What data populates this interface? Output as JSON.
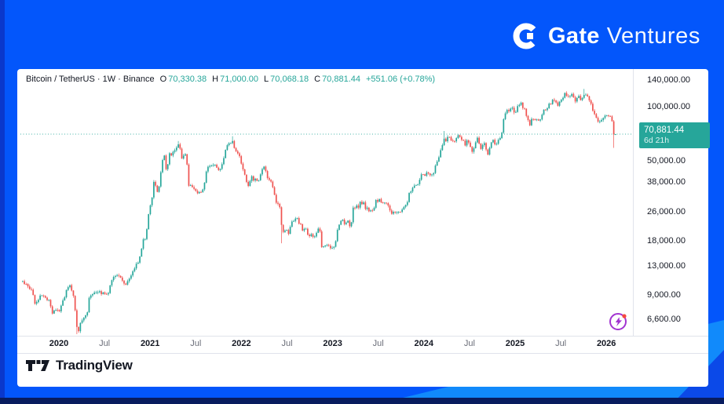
{
  "brand": {
    "gate": "Gate",
    "ventures": "Ventures"
  },
  "legend": {
    "title": "Bitcoin / TetherUS · 1W · Binance",
    "o_label": "O",
    "o": "70,330.38",
    "h_label": "H",
    "h": "71,000.00",
    "l_label": "L",
    "l": "70,068.18",
    "c_label": "C",
    "c": "70,881.44",
    "change": "+551.06 (+0.78%)"
  },
  "price_badge": {
    "price": "70,881.44",
    "countdown": "6d 21h"
  },
  "watermark": {
    "tradingview": "TradingView"
  },
  "chart_data": {
    "type": "candlestick",
    "title": "Bitcoin / TetherUS",
    "interval": "1W",
    "exchange": "Binance",
    "scale": "logarithmic",
    "legend_position": "top-left",
    "grid": false,
    "ylim": [
      5400,
      148000
    ],
    "xlim_years": [
      2019.6,
      2026.1
    ],
    "current": {
      "o": 70330.38,
      "h": 71000.0,
      "l": 70068.18,
      "c": 70881.44,
      "change": 551.06,
      "change_pct": 0.78
    },
    "colors": {
      "up": "#26a69a",
      "down": "#ef5350",
      "badge": "#26a69a",
      "text": "#131722",
      "muted": "#6a6d78"
    },
    "weeks": 340,
    "y_ticks": [
      {
        "label": "140,000.00",
        "value": 140000
      },
      {
        "label": "100,000.00",
        "value": 100000
      },
      {
        "label": "50,000.00",
        "value": 50000
      },
      {
        "label": "38,000.00",
        "value": 38000
      },
      {
        "label": "26,000.00",
        "value": 26000
      },
      {
        "label": "18,000.00",
        "value": 18000
      },
      {
        "label": "13,000.00",
        "value": 13000
      },
      {
        "label": "9,000.00",
        "value": 9000
      },
      {
        "label": "6,600.00",
        "value": 6600
      }
    ],
    "x_ticks": [
      {
        "label": "2020",
        "t": 2020,
        "major": true
      },
      {
        "label": "Jul",
        "t": 2020.5,
        "major": false
      },
      {
        "label": "2021",
        "t": 2021,
        "major": true
      },
      {
        "label": "Jul",
        "t": 2021.5,
        "major": false
      },
      {
        "label": "2022",
        "t": 2022,
        "major": true
      },
      {
        "label": "Jul",
        "t": 2022.5,
        "major": false
      },
      {
        "label": "2023",
        "t": 2023,
        "major": true
      },
      {
        "label": "Jul",
        "t": 2023.5,
        "major": false
      },
      {
        "label": "2024",
        "t": 2024,
        "major": true
      },
      {
        "label": "Jul",
        "t": 2024.5,
        "major": false
      },
      {
        "label": "2025",
        "t": 2025,
        "major": true
      },
      {
        "label": "Jul",
        "t": 2025.5,
        "major": false
      },
      {
        "label": "2026",
        "t": 2026,
        "major": true
      }
    ],
    "price_path": [
      [
        2019.6,
        10800
      ],
      [
        2019.65,
        10200
      ],
      [
        2019.7,
        9900
      ],
      [
        2019.73,
        8200
      ],
      [
        2019.77,
        8450
      ],
      [
        2019.8,
        9300
      ],
      [
        2019.84,
        8600
      ],
      [
        2019.88,
        8800
      ],
      [
        2019.92,
        7300
      ],
      [
        2019.96,
        7500
      ],
      [
        2020.0,
        7250
      ],
      [
        2020.04,
        8350
      ],
      [
        2020.08,
        9550
      ],
      [
        2020.12,
        10300
      ],
      [
        2020.16,
        8900
      ],
      [
        2020.2,
        5450
      ],
      [
        2020.23,
        6250
      ],
      [
        2020.27,
        6850
      ],
      [
        2020.31,
        7500
      ],
      [
        2020.33,
        8800
      ],
      [
        2020.37,
        9350
      ],
      [
        2020.42,
        9600
      ],
      [
        2020.46,
        9150
      ],
      [
        2020.5,
        9250
      ],
      [
        2020.54,
        9450
      ],
      [
        2020.58,
        11100
      ],
      [
        2020.62,
        11750
      ],
      [
        2020.66,
        11600
      ],
      [
        2020.7,
        10450
      ],
      [
        2020.75,
        10750
      ],
      [
        2020.79,
        11600
      ],
      [
        2020.83,
        13050
      ],
      [
        2020.86,
        13850
      ],
      [
        2020.89,
        15600
      ],
      [
        2020.92,
        18700
      ],
      [
        2020.95,
        19150
      ],
      [
        2020.98,
        26500
      ],
      [
        2021.0,
        29100
      ],
      [
        2021.02,
        33100
      ],
      [
        2021.04,
        40100
      ],
      [
        2021.06,
        35900
      ],
      [
        2021.08,
        32200
      ],
      [
        2021.1,
        38300
      ],
      [
        2021.12,
        46400
      ],
      [
        2021.14,
        57600
      ],
      [
        2021.17,
        45200
      ],
      [
        2021.19,
        48900
      ],
      [
        2021.21,
        57400
      ],
      [
        2021.23,
        54200
      ],
      [
        2021.25,
        57200
      ],
      [
        2021.29,
        59900
      ],
      [
        2021.31,
        63500
      ],
      [
        2021.33,
        56300
      ],
      [
        2021.35,
        49100
      ],
      [
        2021.37,
        57900
      ],
      [
        2021.4,
        46800
      ],
      [
        2021.42,
        34800
      ],
      [
        2021.44,
        37400
      ],
      [
        2021.46,
        34700
      ],
      [
        2021.48,
        35700
      ],
      [
        2021.5,
        34500
      ],
      [
        2021.52,
        31600
      ],
      [
        2021.54,
        34300
      ],
      [
        2021.58,
        34400
      ],
      [
        2021.6,
        42300
      ],
      [
        2021.62,
        45700
      ],
      [
        2021.65,
        47100
      ],
      [
        2021.67,
        48900
      ],
      [
        2021.69,
        47200
      ],
      [
        2021.71,
        48900
      ],
      [
        2021.73,
        46100
      ],
      [
        2021.75,
        42900
      ],
      [
        2021.77,
        48300
      ],
      [
        2021.79,
        47800
      ],
      [
        2021.81,
        54800
      ],
      [
        2021.83,
        61000
      ],
      [
        2021.85,
        61400
      ],
      [
        2021.87,
        65600
      ],
      [
        2021.88,
        63200
      ],
      [
        2021.9,
        65500
      ],
      [
        2021.92,
        58100
      ],
      [
        2021.94,
        54900
      ],
      [
        2021.96,
        57400
      ],
      [
        2021.98,
        50500
      ],
      [
        2022.0,
        46400
      ],
      [
        2022.02,
        43200
      ],
      [
        2022.04,
        41800
      ],
      [
        2022.06,
        35100
      ],
      [
        2022.08,
        38400
      ],
      [
        2022.1,
        42500
      ],
      [
        2022.12,
        40200
      ],
      [
        2022.15,
        39100
      ],
      [
        2022.17,
        38500
      ],
      [
        2022.19,
        41100
      ],
      [
        2022.21,
        44600
      ],
      [
        2022.23,
        46400
      ],
      [
        2022.25,
        45900
      ],
      [
        2022.27,
        42400
      ],
      [
        2022.29,
        39800
      ],
      [
        2022.31,
        38700
      ],
      [
        2022.33,
        36100
      ],
      [
        2022.35,
        34200
      ],
      [
        2022.37,
        30200
      ],
      [
        2022.4,
        29600
      ],
      [
        2022.42,
        26800
      ],
      [
        2022.44,
        19100
      ],
      [
        2022.46,
        20700
      ],
      [
        2022.48,
        21600
      ],
      [
        2022.5,
        19400
      ],
      [
        2022.52,
        20900
      ],
      [
        2022.54,
        22600
      ],
      [
        2022.58,
        23400
      ],
      [
        2022.6,
        24500
      ],
      [
        2022.62,
        23300
      ],
      [
        2022.65,
        21600
      ],
      [
        2022.67,
        20100
      ],
      [
        2022.69,
        21600
      ],
      [
        2022.71,
        20100
      ],
      [
        2022.73,
        19000
      ],
      [
        2022.75,
        19700
      ],
      [
        2022.79,
        19300
      ],
      [
        2022.83,
        20700
      ],
      [
        2022.85,
        21400
      ],
      [
        2022.87,
        16400
      ],
      [
        2022.9,
        16800
      ],
      [
        2022.92,
        16600
      ],
      [
        2022.94,
        17200
      ],
      [
        2022.97,
        16900
      ],
      [
        2023.0,
        16700
      ],
      [
        2023.02,
        17100
      ],
      [
        2023.04,
        21100
      ],
      [
        2023.06,
        22800
      ],
      [
        2023.1,
        23600
      ],
      [
        2023.12,
        22000
      ],
      [
        2023.15,
        23300
      ],
      [
        2023.17,
        22500
      ],
      [
        2023.19,
        20600
      ],
      [
        2023.21,
        27600
      ],
      [
        2023.25,
        28600
      ],
      [
        2023.27,
        28000
      ],
      [
        2023.29,
        30400
      ],
      [
        2023.31,
        29400
      ],
      [
        2023.33,
        29600
      ],
      [
        2023.35,
        27000
      ],
      [
        2023.38,
        27200
      ],
      [
        2023.4,
        26600
      ],
      [
        2023.42,
        27100
      ],
      [
        2023.44,
        26000
      ],
      [
        2023.46,
        30800
      ],
      [
        2023.5,
        30400
      ],
      [
        2023.54,
        29900
      ],
      [
        2023.58,
        29400
      ],
      [
        2023.6,
        29100
      ],
      [
        2023.62,
        26200
      ],
      [
        2023.67,
        26100
      ],
      [
        2023.71,
        26700
      ],
      [
        2023.75,
        27100
      ],
      [
        2023.77,
        27700
      ],
      [
        2023.79,
        28600
      ],
      [
        2023.81,
        30000
      ],
      [
        2023.83,
        34200
      ],
      [
        2023.87,
        35100
      ],
      [
        2023.9,
        37200
      ],
      [
        2023.94,
        39100
      ],
      [
        2023.96,
        41800
      ],
      [
        2024.0,
        42400
      ],
      [
        2024.02,
        44100
      ],
      [
        2024.04,
        41800
      ],
      [
        2024.06,
        42700
      ],
      [
        2024.08,
        42100
      ],
      [
        2024.1,
        43100
      ],
      [
        2024.12,
        48400
      ],
      [
        2024.15,
        51800
      ],
      [
        2024.19,
        62500
      ],
      [
        2024.21,
        68400
      ],
      [
        2024.23,
        65400
      ],
      [
        2024.25,
        69700
      ],
      [
        2024.27,
        67300
      ],
      [
        2024.29,
        64100
      ],
      [
        2024.31,
        63900
      ],
      [
        2024.33,
        67000
      ],
      [
        2024.37,
        69100
      ],
      [
        2024.4,
        67800
      ],
      [
        2024.42,
        64400
      ],
      [
        2024.44,
        61100
      ],
      [
        2024.46,
        64400
      ],
      [
        2024.48,
        63300
      ],
      [
        2024.5,
        58300
      ],
      [
        2024.52,
        56900
      ],
      [
        2024.54,
        58200
      ],
      [
        2024.56,
        68100
      ],
      [
        2024.58,
        67200
      ],
      [
        2024.6,
        60800
      ],
      [
        2024.62,
        59100
      ],
      [
        2024.65,
        64200
      ],
      [
        2024.67,
        59200
      ],
      [
        2024.69,
        54100
      ],
      [
        2024.71,
        59500
      ],
      [
        2024.73,
        63700
      ],
      [
        2024.75,
        65700
      ],
      [
        2024.77,
        62900
      ],
      [
        2024.79,
        62400
      ],
      [
        2024.81,
        67100
      ],
      [
        2024.83,
        69500
      ],
      [
        2024.85,
        76800
      ],
      [
        2024.87,
        90700
      ],
      [
        2024.9,
        97800
      ],
      [
        2024.92,
        96000
      ],
      [
        2024.94,
        101300
      ],
      [
        2024.96,
        97400
      ],
      [
        2024.98,
        94400
      ],
      [
        2025.0,
        94500
      ],
      [
        2025.02,
        104700
      ],
      [
        2025.04,
        102400
      ],
      [
        2025.06,
        104800
      ],
      [
        2025.08,
        97800
      ],
      [
        2025.1,
        96200
      ],
      [
        2025.12,
        84400
      ],
      [
        2025.15,
        80800
      ],
      [
        2025.17,
        86100
      ],
      [
        2025.19,
        84100
      ],
      [
        2025.21,
        82700
      ],
      [
        2025.23,
        83900
      ],
      [
        2025.25,
        82600
      ],
      [
        2025.27,
        85300
      ],
      [
        2025.29,
        94100
      ],
      [
        2025.31,
        95100
      ],
      [
        2025.33,
        94400
      ],
      [
        2025.35,
        104100
      ],
      [
        2025.37,
        103900
      ],
      [
        2025.4,
        109100
      ],
      [
        2025.42,
        106100
      ],
      [
        2025.44,
        104700
      ],
      [
        2025.46,
        101600
      ],
      [
        2025.48,
        108300
      ],
      [
        2025.5,
        109300
      ],
      [
        2025.52,
        117500
      ],
      [
        2025.54,
        119100
      ],
      [
        2025.56,
        115300
      ],
      [
        2025.58,
        113600
      ],
      [
        2025.6,
        117400
      ],
      [
        2025.62,
        113500
      ],
      [
        2025.65,
        108900
      ],
      [
        2025.67,
        111300
      ],
      [
        2025.69,
        116000
      ],
      [
        2025.71,
        109800
      ],
      [
        2025.73,
        114300
      ],
      [
        2025.75,
        122500
      ],
      [
        2025.77,
        115100
      ],
      [
        2025.79,
        111100
      ],
      [
        2025.81,
        106400
      ],
      [
        2025.83,
        96600
      ],
      [
        2025.85,
        91600
      ],
      [
        2025.87,
        86500
      ],
      [
        2025.9,
        81100
      ],
      [
        2025.92,
        87400
      ],
      [
        2025.94,
        86200
      ],
      [
        2025.96,
        90600
      ],
      [
        2025.98,
        88100
      ],
      [
        2026.0,
        91100
      ],
      [
        2026.02,
        88600
      ],
      [
        2026.04,
        90300
      ],
      [
        2026.06,
        71100
      ],
      [
        2026.085,
        70881
      ]
    ],
    "wick_overrides": [
      {
        "t": 2020.2,
        "low": 5450
      },
      {
        "t": 2021.31,
        "high": 64900
      },
      {
        "t": 2021.9,
        "high": 69000
      },
      {
        "t": 2022.44,
        "low": 17600
      },
      {
        "t": 2024.21,
        "high": 73800
      },
      {
        "t": 2025.75,
        "high": 126200
      },
      {
        "t": 2026.06,
        "low": 59500
      }
    ]
  }
}
